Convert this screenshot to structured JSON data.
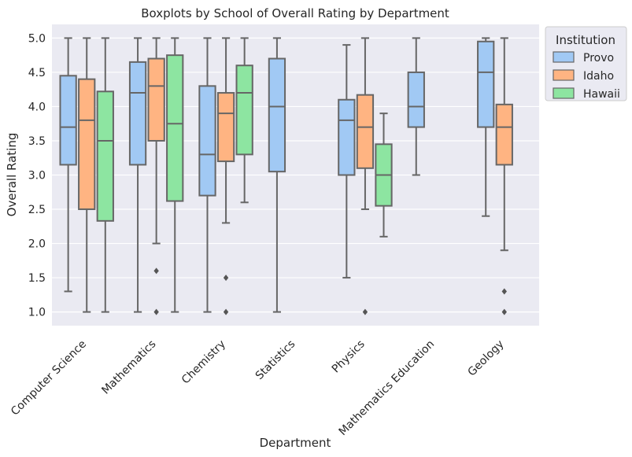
{
  "chart_data": {
    "type": "boxplot",
    "title": "Boxplots by School of Overall Rating by Department",
    "xlabel": "Department",
    "ylabel": "Overall Rating",
    "ylim": [
      0.8,
      5.2
    ],
    "yticks": [
      "1.0",
      "1.5",
      "2.0",
      "2.5",
      "3.0",
      "3.5",
      "4.0",
      "4.5",
      "5.0"
    ],
    "grid": true,
    "legend": {
      "title": "Institution",
      "placement": "outside-top-right"
    },
    "categories": [
      "Computer Science",
      "Mathematics",
      "Chemistry",
      "Statistics",
      "Physics",
      "Mathematics Education",
      "Geology"
    ],
    "series": [
      {
        "name": "Provo",
        "color": "#a1c9f4",
        "boxes": [
          {
            "category": "Computer Science",
            "whisker_low": 1.3,
            "q1": 3.15,
            "median": 3.7,
            "q3": 4.45,
            "whisker_high": 5.0,
            "outliers": []
          },
          {
            "category": "Mathematics",
            "whisker_low": 1.0,
            "q1": 3.15,
            "median": 4.2,
            "q3": 4.65,
            "whisker_high": 5.0,
            "outliers": []
          },
          {
            "category": "Chemistry",
            "whisker_low": 1.0,
            "q1": 2.7,
            "median": 3.3,
            "q3": 4.3,
            "whisker_high": 5.0,
            "outliers": []
          },
          {
            "category": "Statistics",
            "whisker_low": 1.0,
            "q1": 3.05,
            "median": 4.0,
            "q3": 4.7,
            "whisker_high": 5.0,
            "outliers": []
          },
          {
            "category": "Physics",
            "whisker_low": 1.5,
            "q1": 3.0,
            "median": 3.8,
            "q3": 4.1,
            "whisker_high": 4.9,
            "outliers": []
          },
          {
            "category": "Mathematics Education",
            "whisker_low": 3.0,
            "q1": 3.7,
            "median": 4.0,
            "q3": 4.5,
            "whisker_high": 5.0,
            "outliers": []
          },
          {
            "category": "Geology",
            "whisker_low": 2.4,
            "q1": 3.7,
            "median": 4.5,
            "q3": 4.95,
            "whisker_high": 5.0,
            "outliers": []
          }
        ]
      },
      {
        "name": "Idaho",
        "color": "#ffb482",
        "boxes": [
          {
            "category": "Computer Science",
            "whisker_low": 1.0,
            "q1": 2.5,
            "median": 3.8,
            "q3": 4.4,
            "whisker_high": 5.0,
            "outliers": []
          },
          {
            "category": "Mathematics",
            "whisker_low": 2.0,
            "q1": 3.5,
            "median": 4.3,
            "q3": 4.7,
            "whisker_high": 5.0,
            "outliers": [
              1.6,
              1.0
            ]
          },
          {
            "category": "Chemistry",
            "whisker_low": 2.3,
            "q1": 3.2,
            "median": 3.9,
            "q3": 4.2,
            "whisker_high": 5.0,
            "outliers": [
              1.5,
              1.0
            ]
          },
          {
            "category": "Physics",
            "whisker_low": 2.5,
            "q1": 3.1,
            "median": 3.7,
            "q3": 4.17,
            "whisker_high": 5.0,
            "outliers": [
              1.0
            ]
          },
          {
            "category": "Geology",
            "whisker_low": 1.9,
            "q1": 3.15,
            "median": 3.7,
            "q3": 4.03,
            "whisker_high": 5.0,
            "outliers": [
              1.3,
              1.0
            ]
          }
        ]
      },
      {
        "name": "Hawaii",
        "color": "#8de5a1",
        "boxes": [
          {
            "category": "Computer Science",
            "whisker_low": 1.0,
            "q1": 2.33,
            "median": 3.5,
            "q3": 4.22,
            "whisker_high": 5.0,
            "outliers": []
          },
          {
            "category": "Mathematics",
            "whisker_low": 1.0,
            "q1": 2.62,
            "median": 3.75,
            "q3": 4.75,
            "whisker_high": 5.0,
            "outliers": []
          },
          {
            "category": "Chemistry",
            "whisker_low": 2.6,
            "q1": 3.3,
            "median": 4.2,
            "q3": 4.6,
            "whisker_high": 5.0,
            "outliers": []
          },
          {
            "category": "Physics",
            "whisker_low": 2.1,
            "q1": 2.55,
            "median": 3.0,
            "q3": 3.45,
            "whisker_high": 3.9,
            "outliers": []
          }
        ]
      }
    ]
  }
}
